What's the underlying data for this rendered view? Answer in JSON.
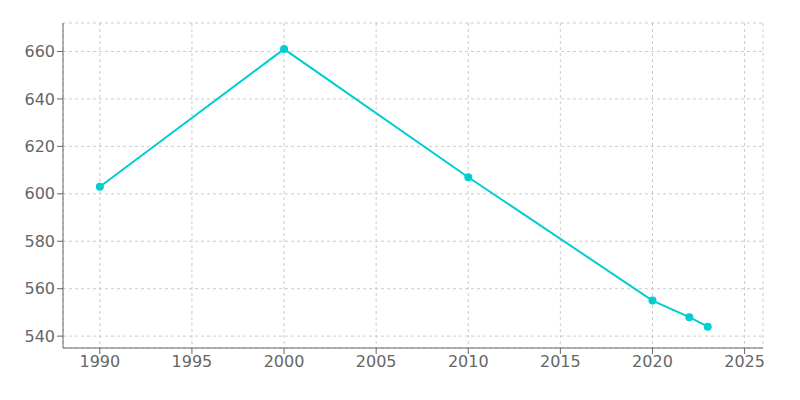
{
  "chart_data": {
    "type": "line",
    "x": [
      1990,
      2000,
      2010,
      2020,
      2022,
      2023
    ],
    "values": [
      603,
      661,
      607,
      555,
      548,
      544
    ],
    "color": "#00CED1",
    "marker": "circle",
    "xlim": [
      1988,
      2026
    ],
    "ylim": [
      535,
      672
    ],
    "xticks": [
      1990,
      1995,
      2000,
      2005,
      2010,
      2015,
      2020,
      2025
    ],
    "yticks": [
      540,
      560,
      580,
      600,
      620,
      640,
      660
    ],
    "grid": true
  }
}
